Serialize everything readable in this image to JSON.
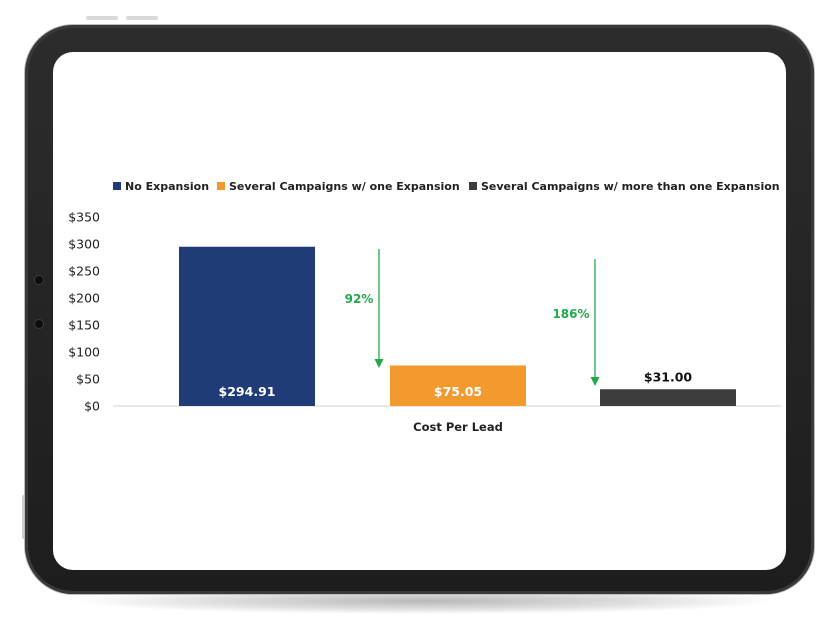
{
  "chart_data": {
    "type": "bar",
    "xlabel": "Cost Per Lead",
    "ylabel": "",
    "ylim": [
      0,
      350
    ],
    "yticks": [
      "$0",
      "$50",
      "$100",
      "$150",
      "$200",
      "$250",
      "$300",
      "$350"
    ],
    "grid": false,
    "legend_position": "top",
    "series": [
      {
        "name": "No Expansion",
        "value": 294.91,
        "label": "$294.91",
        "color": "#1f3c78"
      },
      {
        "name": "Several Campaigns w/ one Expansion",
        "value": 75.05,
        "label": "$75.05",
        "color": "#f29a2e"
      },
      {
        "name": "Several Campaigns w/ more than one Expansion",
        "value": 31.0,
        "label": "$31.00",
        "color": "#3d3d3d"
      }
    ],
    "annotations": [
      {
        "text": "92%",
        "color": "#22a94a"
      },
      {
        "text": "186%",
        "color": "#22a94a"
      }
    ]
  }
}
